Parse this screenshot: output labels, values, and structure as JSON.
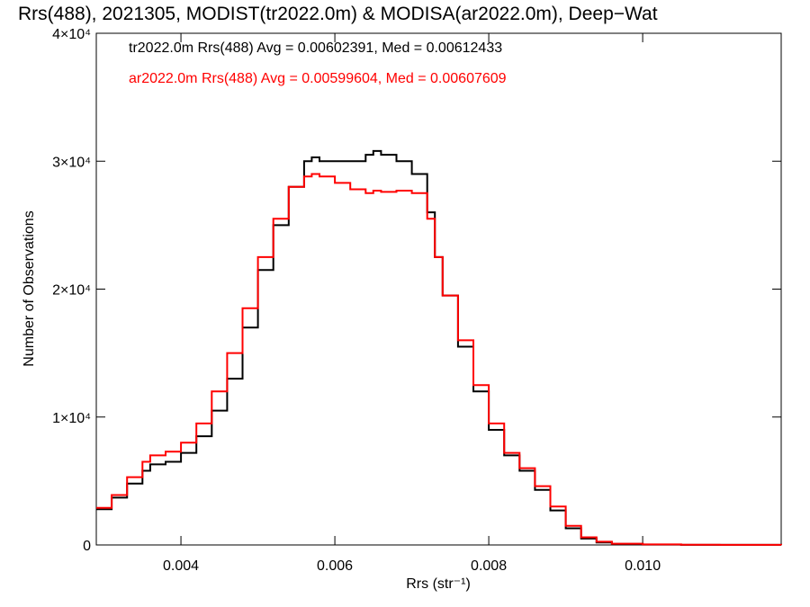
{
  "chart_data": {
    "type": "line",
    "title": "Rrs(488), 2021305, MODIST(tr2022.0m) & MODISA(ar2022.0m), Deep−Wat",
    "xlabel": "Rrs (str⁻¹)",
    "ylabel": "Number of Observations",
    "xlim": [
      0.0029,
      0.0118
    ],
    "ylim": [
      0,
      40000
    ],
    "x_ticks": [
      {
        "value": 0.004,
        "label": "0.004"
      },
      {
        "value": 0.006,
        "label": "0.006"
      },
      {
        "value": 0.008,
        "label": "0.008"
      },
      {
        "value": 0.01,
        "label": "0.010"
      }
    ],
    "y_ticks": [
      {
        "value": 0,
        "label": "0"
      },
      {
        "value": 10000,
        "label": "1×10⁴"
      },
      {
        "value": 20000,
        "label": "2×10⁴"
      },
      {
        "value": 30000,
        "label": "3×10⁴"
      },
      {
        "value": 40000,
        "label": "4×10⁴"
      }
    ],
    "annotations": [
      {
        "text": "tr2022.0m Rrs(488) Avg = 0.00602391, Med = 0.00612433",
        "color": "#000000"
      },
      {
        "text": "ar2022.0m Rrs(488) Avg = 0.00599604, Med = 0.00607609",
        "color": "#ff0000"
      }
    ],
    "series": [
      {
        "color": "#000000",
        "x": [
          0.0029,
          0.0031,
          0.0033,
          0.0035,
          0.0036,
          0.0038,
          0.004,
          0.0042,
          0.0044,
          0.0046,
          0.0048,
          0.005,
          0.0052,
          0.0054,
          0.0056,
          0.0057,
          0.0058,
          0.006,
          0.0062,
          0.0064,
          0.0065,
          0.0066,
          0.0068,
          0.007,
          0.0072,
          0.0073,
          0.0074,
          0.0076,
          0.0078,
          0.008,
          0.0082,
          0.0084,
          0.0086,
          0.0088,
          0.009,
          0.0092,
          0.0094,
          0.0096,
          0.01,
          0.0105,
          0.011,
          0.0118
        ],
        "y": [
          2800,
          3700,
          4800,
          5800,
          6300,
          6500,
          7200,
          8500,
          10500,
          13000,
          17000,
          21500,
          25000,
          28000,
          30000,
          30300,
          30000,
          30000,
          30000,
          30500,
          30800,
          30500,
          30000,
          29000,
          26000,
          22500,
          19500,
          15500,
          12000,
          9000,
          7000,
          5800,
          4300,
          2700,
          1300,
          500,
          200,
          80,
          30,
          10,
          5,
          0
        ]
      },
      {
        "color": "#ff0000",
        "x": [
          0.0029,
          0.0031,
          0.0033,
          0.0035,
          0.0036,
          0.0038,
          0.004,
          0.0042,
          0.0044,
          0.0046,
          0.0048,
          0.005,
          0.0052,
          0.0054,
          0.0056,
          0.0057,
          0.0058,
          0.006,
          0.0062,
          0.0064,
          0.0065,
          0.0066,
          0.0068,
          0.007,
          0.0072,
          0.0073,
          0.0074,
          0.0076,
          0.0078,
          0.008,
          0.0082,
          0.0084,
          0.0086,
          0.0088,
          0.009,
          0.0092,
          0.0094,
          0.0096,
          0.01,
          0.0105,
          0.011,
          0.0118
        ],
        "y": [
          2900,
          3900,
          5300,
          6500,
          7000,
          7300,
          8000,
          9500,
          12000,
          15000,
          18500,
          22500,
          25500,
          28000,
          28800,
          29000,
          28800,
          28300,
          27800,
          27500,
          27700,
          27600,
          27700,
          27500,
          25500,
          22500,
          19500,
          16000,
          12500,
          9500,
          7200,
          6000,
          4600,
          3000,
          1500,
          600,
          250,
          100,
          40,
          15,
          5,
          0
        ]
      }
    ]
  }
}
